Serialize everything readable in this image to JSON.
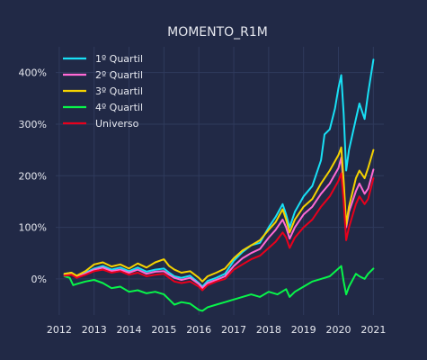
{
  "chart_data": {
    "type": "line",
    "title": "MOMENTO_R1M",
    "xlabel": "",
    "ylabel": "",
    "xlim": [
      2011.9,
      2021.3
    ],
    "ylim": [
      -70,
      450
    ],
    "x_ticks": [
      {
        "v": 2012,
        "label": "2012"
      },
      {
        "v": 2013,
        "label": "2013"
      },
      {
        "v": 2014,
        "label": "2014"
      },
      {
        "v": 2015,
        "label": "2015"
      },
      {
        "v": 2016,
        "label": "2016"
      },
      {
        "v": 2017,
        "label": "2017"
      },
      {
        "v": 2018,
        "label": "2018"
      },
      {
        "v": 2019,
        "label": "2019"
      },
      {
        "v": 2020,
        "label": "2020"
      },
      {
        "v": 2021,
        "label": "2021"
      }
    ],
    "y_ticks": [
      {
        "v": 0,
        "label": "0%"
      },
      {
        "v": 100,
        "label": "100%"
      },
      {
        "v": 200,
        "label": "200%"
      },
      {
        "v": 300,
        "label": "300%"
      },
      {
        "v": 400,
        "label": "400%"
      }
    ],
    "grid": true,
    "legend_position": "top-left",
    "series": [
      {
        "name": "1º Quartil",
        "color": "#18e0f5",
        "points": [
          [
            2012.15,
            10
          ],
          [
            2012.35,
            12
          ],
          [
            2012.5,
            5
          ],
          [
            2012.75,
            12
          ],
          [
            2013.0,
            20
          ],
          [
            2013.25,
            25
          ],
          [
            2013.5,
            18
          ],
          [
            2013.75,
            22
          ],
          [
            2014.0,
            15
          ],
          [
            2014.25,
            22
          ],
          [
            2014.5,
            14
          ],
          [
            2014.75,
            18
          ],
          [
            2015.0,
            20
          ],
          [
            2015.15,
            12
          ],
          [
            2015.3,
            5
          ],
          [
            2015.5,
            2
          ],
          [
            2015.75,
            6
          ],
          [
            2016.0,
            -8
          ],
          [
            2016.1,
            -15
          ],
          [
            2016.25,
            -4
          ],
          [
            2016.5,
            2
          ],
          [
            2016.75,
            10
          ],
          [
            2017.0,
            35
          ],
          [
            2017.25,
            52
          ],
          [
            2017.5,
            65
          ],
          [
            2017.75,
            70
          ],
          [
            2018.0,
            100
          ],
          [
            2018.2,
            120
          ],
          [
            2018.4,
            145
          ],
          [
            2018.5,
            125
          ],
          [
            2018.6,
            100
          ],
          [
            2018.75,
            130
          ],
          [
            2019.0,
            160
          ],
          [
            2019.25,
            180
          ],
          [
            2019.5,
            230
          ],
          [
            2019.6,
            280
          ],
          [
            2019.75,
            290
          ],
          [
            2019.9,
            330
          ],
          [
            2020.0,
            370
          ],
          [
            2020.08,
            395
          ],
          [
            2020.15,
            320
          ],
          [
            2020.22,
            210
          ],
          [
            2020.3,
            250
          ],
          [
            2020.5,
            310
          ],
          [
            2020.6,
            340
          ],
          [
            2020.75,
            310
          ],
          [
            2020.85,
            360
          ],
          [
            2021.0,
            425
          ]
        ]
      },
      {
        "name": "2º Quartil",
        "color": "#ff6ad5",
        "points": [
          [
            2012.15,
            8
          ],
          [
            2012.35,
            10
          ],
          [
            2012.5,
            4
          ],
          [
            2012.75,
            10
          ],
          [
            2013.0,
            18
          ],
          [
            2013.25,
            22
          ],
          [
            2013.5,
            15
          ],
          [
            2013.75,
            18
          ],
          [
            2014.0,
            12
          ],
          [
            2014.25,
            18
          ],
          [
            2014.5,
            10
          ],
          [
            2014.75,
            14
          ],
          [
            2015.0,
            15
          ],
          [
            2015.15,
            8
          ],
          [
            2015.3,
            2
          ],
          [
            2015.5,
            -2
          ],
          [
            2015.75,
            2
          ],
          [
            2016.0,
            -10
          ],
          [
            2016.1,
            -18
          ],
          [
            2016.25,
            -8
          ],
          [
            2016.5,
            -2
          ],
          [
            2016.75,
            5
          ],
          [
            2017.0,
            25
          ],
          [
            2017.25,
            40
          ],
          [
            2017.5,
            50
          ],
          [
            2017.75,
            58
          ],
          [
            2018.0,
            80
          ],
          [
            2018.2,
            95
          ],
          [
            2018.4,
            115
          ],
          [
            2018.5,
            100
          ],
          [
            2018.6,
            78
          ],
          [
            2018.75,
            100
          ],
          [
            2019.0,
            125
          ],
          [
            2019.25,
            140
          ],
          [
            2019.5,
            165
          ],
          [
            2019.75,
            185
          ],
          [
            2020.0,
            215
          ],
          [
            2020.08,
            235
          ],
          [
            2020.15,
            180
          ],
          [
            2020.22,
            100
          ],
          [
            2020.3,
            130
          ],
          [
            2020.5,
            170
          ],
          [
            2020.6,
            185
          ],
          [
            2020.75,
            165
          ],
          [
            2020.85,
            175
          ],
          [
            2021.0,
            212
          ]
        ]
      },
      {
        "name": "3º Quartil",
        "color": "#f5d300",
        "points": [
          [
            2012.15,
            10
          ],
          [
            2012.35,
            12
          ],
          [
            2012.5,
            6
          ],
          [
            2012.75,
            15
          ],
          [
            2013.0,
            28
          ],
          [
            2013.25,
            32
          ],
          [
            2013.5,
            24
          ],
          [
            2013.75,
            28
          ],
          [
            2014.0,
            20
          ],
          [
            2014.25,
            30
          ],
          [
            2014.5,
            22
          ],
          [
            2014.75,
            32
          ],
          [
            2015.0,
            38
          ],
          [
            2015.15,
            25
          ],
          [
            2015.3,
            18
          ],
          [
            2015.5,
            12
          ],
          [
            2015.75,
            15
          ],
          [
            2016.0,
            2
          ],
          [
            2016.1,
            -5
          ],
          [
            2016.25,
            5
          ],
          [
            2016.5,
            12
          ],
          [
            2016.75,
            20
          ],
          [
            2017.0,
            40
          ],
          [
            2017.25,
            55
          ],
          [
            2017.5,
            65
          ],
          [
            2017.75,
            75
          ],
          [
            2018.0,
            95
          ],
          [
            2018.2,
            110
          ],
          [
            2018.4,
            135
          ],
          [
            2018.5,
            115
          ],
          [
            2018.6,
            90
          ],
          [
            2018.75,
            115
          ],
          [
            2019.0,
            140
          ],
          [
            2019.25,
            155
          ],
          [
            2019.5,
            185
          ],
          [
            2019.75,
            210
          ],
          [
            2020.0,
            240
          ],
          [
            2020.08,
            255
          ],
          [
            2020.15,
            190
          ],
          [
            2020.22,
            105
          ],
          [
            2020.3,
            140
          ],
          [
            2020.5,
            195
          ],
          [
            2020.6,
            210
          ],
          [
            2020.75,
            195
          ],
          [
            2020.85,
            215
          ],
          [
            2021.0,
            250
          ]
        ]
      },
      {
        "name": "4º Quartil",
        "color": "#08f54a",
        "points": [
          [
            2012.15,
            5
          ],
          [
            2012.3,
            2
          ],
          [
            2012.4,
            -12
          ],
          [
            2012.5,
            -10
          ],
          [
            2012.75,
            -5
          ],
          [
            2013.0,
            -2
          ],
          [
            2013.25,
            -8
          ],
          [
            2013.5,
            -18
          ],
          [
            2013.75,
            -15
          ],
          [
            2014.0,
            -25
          ],
          [
            2014.25,
            -22
          ],
          [
            2014.5,
            -28
          ],
          [
            2014.75,
            -25
          ],
          [
            2015.0,
            -30
          ],
          [
            2015.15,
            -40
          ],
          [
            2015.3,
            -50
          ],
          [
            2015.5,
            -45
          ],
          [
            2015.75,
            -48
          ],
          [
            2016.0,
            -60
          ],
          [
            2016.1,
            -62
          ],
          [
            2016.25,
            -55
          ],
          [
            2016.5,
            -50
          ],
          [
            2016.75,
            -45
          ],
          [
            2017.0,
            -40
          ],
          [
            2017.25,
            -35
          ],
          [
            2017.5,
            -30
          ],
          [
            2017.75,
            -35
          ],
          [
            2018.0,
            -25
          ],
          [
            2018.25,
            -30
          ],
          [
            2018.5,
            -20
          ],
          [
            2018.6,
            -35
          ],
          [
            2018.75,
            -25
          ],
          [
            2019.0,
            -15
          ],
          [
            2019.25,
            -5
          ],
          [
            2019.5,
            0
          ],
          [
            2019.75,
            5
          ],
          [
            2020.0,
            20
          ],
          [
            2020.08,
            25
          ],
          [
            2020.15,
            -5
          ],
          [
            2020.22,
            -30
          ],
          [
            2020.3,
            -15
          ],
          [
            2020.5,
            10
          ],
          [
            2020.6,
            5
          ],
          [
            2020.75,
            0
          ],
          [
            2020.85,
            10
          ],
          [
            2021.0,
            20
          ]
        ]
      },
      {
        "name": "Universo",
        "color": "#e8001c",
        "points": [
          [
            2012.15,
            6
          ],
          [
            2012.35,
            8
          ],
          [
            2012.5,
            2
          ],
          [
            2012.75,
            8
          ],
          [
            2013.0,
            15
          ],
          [
            2013.25,
            18
          ],
          [
            2013.5,
            12
          ],
          [
            2013.75,
            15
          ],
          [
            2014.0,
            8
          ],
          [
            2014.25,
            12
          ],
          [
            2014.5,
            5
          ],
          [
            2014.75,
            8
          ],
          [
            2015.0,
            10
          ],
          [
            2015.15,
            2
          ],
          [
            2015.3,
            -5
          ],
          [
            2015.5,
            -8
          ],
          [
            2015.75,
            -5
          ],
          [
            2016.0,
            -15
          ],
          [
            2016.1,
            -22
          ],
          [
            2016.25,
            -12
          ],
          [
            2016.5,
            -5
          ],
          [
            2016.75,
            0
          ],
          [
            2017.0,
            18
          ],
          [
            2017.25,
            28
          ],
          [
            2017.5,
            38
          ],
          [
            2017.75,
            45
          ],
          [
            2018.0,
            60
          ],
          [
            2018.2,
            72
          ],
          [
            2018.4,
            90
          ],
          [
            2018.5,
            80
          ],
          [
            2018.6,
            60
          ],
          [
            2018.75,
            80
          ],
          [
            2019.0,
            100
          ],
          [
            2019.25,
            115
          ],
          [
            2019.5,
            140
          ],
          [
            2019.75,
            160
          ],
          [
            2020.0,
            190
          ],
          [
            2020.08,
            205
          ],
          [
            2020.15,
            150
          ],
          [
            2020.22,
            75
          ],
          [
            2020.3,
            100
          ],
          [
            2020.5,
            145
          ],
          [
            2020.6,
            160
          ],
          [
            2020.75,
            145
          ],
          [
            2020.85,
            155
          ],
          [
            2021.0,
            195
          ]
        ]
      }
    ]
  }
}
